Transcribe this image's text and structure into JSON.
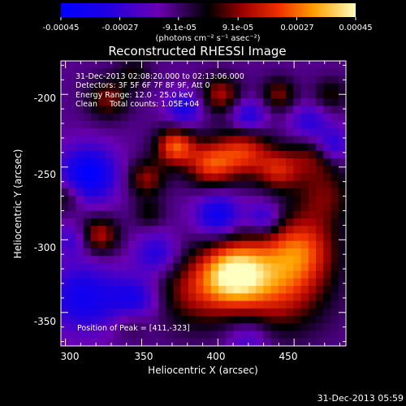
{
  "chart_data": {
    "type": "heatmap",
    "title": "Reconstructed RHESSI Image",
    "xlabel": "Heliocentric X (arcsec)",
    "ylabel": "Heliocentric Y (arcsec)",
    "xlim": [
      297,
      484
    ],
    "ylim": [
      -373,
      -177
    ],
    "x_ticks": [
      300,
      350,
      400,
      450
    ],
    "y_ticks": [
      -200,
      -250,
      -300,
      -350
    ],
    "grid": false,
    "colorbar": {
      "min": -0.00045,
      "max": 0.00045,
      "tick_labels": [
        "-0.00045",
        "-0.00027",
        "-9.1e-05",
        "9.1e-05",
        "0.00027",
        "0.00045"
      ],
      "unit_label": "(photons cm⁻² s⁻¹ asec⁻²)"
    },
    "annotations": [
      "31-Dec-2013 02:08:20.000 to 02:13:06.000",
      "Detectors: 3F 5F 6F 7F 8F 9F, Att 0",
      "Energy Range: 12.0 - 25.0 keV",
      "Clean     Total counts: 1.05E+04",
      "Position of Peak = [411,-323]"
    ],
    "peak": {
      "x": 411,
      "y": -323
    },
    "sources": [
      {
        "x": 411,
        "y": -323,
        "amp": 0.00045,
        "sigma": 15
      },
      {
        "x": 440,
        "y": -330,
        "amp": 0.00032,
        "sigma": 22
      },
      {
        "x": 455,
        "y": -305,
        "amp": 0.00026,
        "sigma": 16
      },
      {
        "x": 385,
        "y": -335,
        "amp": 0.00022,
        "sigma": 18
      },
      {
        "x": 470,
        "y": -270,
        "amp": 0.00018,
        "sigma": 14
      },
      {
        "x": 395,
        "y": -248,
        "amp": 0.00032,
        "sigma": 11
      },
      {
        "x": 372,
        "y": -236,
        "amp": 0.00036,
        "sigma": 9
      },
      {
        "x": 417,
        "y": -240,
        "amp": 0.0003,
        "sigma": 12
      },
      {
        "x": 440,
        "y": -252,
        "amp": 0.00026,
        "sigma": 10
      },
      {
        "x": 463,
        "y": -242,
        "amp": 0.00018,
        "sigma": 11
      },
      {
        "x": 353,
        "y": -258,
        "amp": 0.00022,
        "sigma": 9
      },
      {
        "x": 402,
        "y": -200,
        "amp": 0.00024,
        "sigma": 9
      },
      {
        "x": 440,
        "y": -200,
        "amp": 0.0002,
        "sigma": 8
      },
      {
        "x": 328,
        "y": -203,
        "amp": 0.0002,
        "sigma": 10
      },
      {
        "x": 345,
        "y": -185,
        "amp": 0.00012,
        "sigma": 8
      },
      {
        "x": 322,
        "y": -297,
        "amp": 0.00026,
        "sigma": 9
      },
      {
        "x": 355,
        "y": -282,
        "amp": 0.00012,
        "sigma": 7
      },
      {
        "x": 300,
        "y": -270,
        "amp": 0.00016,
        "sigma": 8
      },
      {
        "x": 343,
        "y": -355,
        "amp": 0.00012,
        "sigma": 9
      },
      {
        "x": 474,
        "y": -200,
        "amp": 0.00014,
        "sigma": 8
      },
      {
        "x": 315,
        "y": -255,
        "amp": -0.00034,
        "sigma": 13
      },
      {
        "x": 312,
        "y": -340,
        "amp": -0.00026,
        "sigma": 16
      },
      {
        "x": 345,
        "y": -342,
        "amp": -0.00024,
        "sigma": 11
      },
      {
        "x": 378,
        "y": -210,
        "amp": -0.00022,
        "sigma": 8
      },
      {
        "x": 420,
        "y": -215,
        "amp": -0.00022,
        "sigma": 8
      },
      {
        "x": 460,
        "y": -220,
        "amp": -0.00018,
        "sigma": 9
      },
      {
        "x": 475,
        "y": -235,
        "amp": -0.00022,
        "sigma": 8
      },
      {
        "x": 400,
        "y": -283,
        "amp": -0.00028,
        "sigma": 10
      },
      {
        "x": 430,
        "y": -285,
        "amp": -0.0002,
        "sigma": 8
      },
      {
        "x": 360,
        "y": -310,
        "amp": -0.0002,
        "sigma": 10
      },
      {
        "x": 420,
        "y": -368,
        "amp": -0.00014,
        "sigma": 10
      },
      {
        "x": 305,
        "y": -300,
        "amp": -0.00014,
        "sigma": 8
      }
    ]
  },
  "footer": {
    "timestamp": "31-Dec-2013 05:59"
  }
}
